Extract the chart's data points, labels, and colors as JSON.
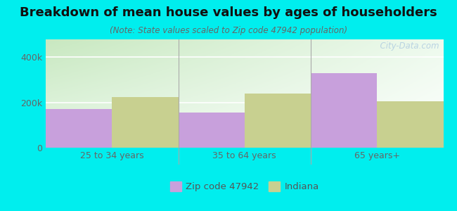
{
  "title": "Breakdown of mean house values by ages of householders",
  "subtitle": "(Note: State values scaled to Zip code 47942 population)",
  "categories": [
    "25 to 34 years",
    "35 to 64 years",
    "65 years+"
  ],
  "zip_values": [
    170000,
    155000,
    330000
  ],
  "state_values": [
    225000,
    240000,
    205000
  ],
  "zip_color": "#C8A0DC",
  "state_color": "#C8D090",
  "background_outer": "#00EEEE",
  "background_inner_left_top": "#D8EED0",
  "background_inner_right": "#F5FFF5",
  "background_inner_bottom": "#FFFFFF",
  "ylim": [
    0,
    480000
  ],
  "yticks": [
    0,
    200000,
    400000
  ],
  "ytick_labels": [
    "0",
    "200k",
    "400k"
  ],
  "watermark": "  City-Data.com",
  "legend_zip_label": "Zip code 47942",
  "legend_state_label": "Indiana",
  "bar_width": 0.5,
  "title_fontsize": 13,
  "subtitle_fontsize": 8.5,
  "tick_fontsize": 9,
  "legend_fontsize": 9.5
}
